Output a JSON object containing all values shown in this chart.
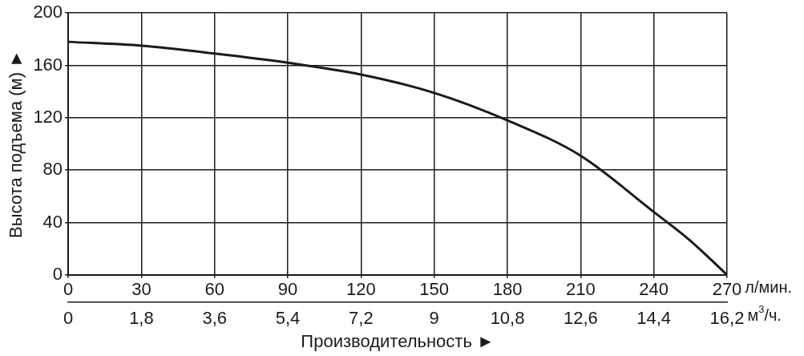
{
  "chart_data": {
    "type": "line",
    "xlabel": "Производительность ►",
    "ylabel": "Высота подъема (м) ►",
    "x": [
      0,
      30,
      60,
      90,
      120,
      150,
      180,
      210,
      240,
      255,
      270
    ],
    "series": [
      {
        "color": "#1a1a1a",
        "values": [
          178,
          175,
          169,
          162,
          153,
          139,
          118,
          91,
          48,
          26,
          0
        ]
      }
    ],
    "xlim": [
      0,
      270
    ],
    "xticks": [
      0,
      30,
      60,
      90,
      120,
      150,
      180,
      210,
      240,
      270
    ],
    "x2lim": [
      0,
      16.2
    ],
    "x2ticks": [
      0,
      {
        "value": 1.8,
        "label": "1,8"
      },
      {
        "value": 3.6,
        "label": "3,6"
      },
      {
        "value": 5.4,
        "label": "5,4"
      },
      {
        "value": 7.2,
        "label": "7,2"
      },
      9,
      {
        "value": 10.8,
        "label": "10,8"
      },
      {
        "value": 12.6,
        "label": "12,6"
      },
      {
        "value": 14.4,
        "label": "14,4"
      },
      {
        "value": 16.2,
        "label": "16,2"
      }
    ],
    "ylim": [
      0,
      200
    ],
    "yticks": [
      0,
      40,
      80,
      120,
      160,
      200
    ],
    "grid": true,
    "legend": false,
    "marker": "none",
    "line_style": "solid",
    "annotations": [
      "л/мин.",
      "м$^{3}$/ч."
    ]
  }
}
